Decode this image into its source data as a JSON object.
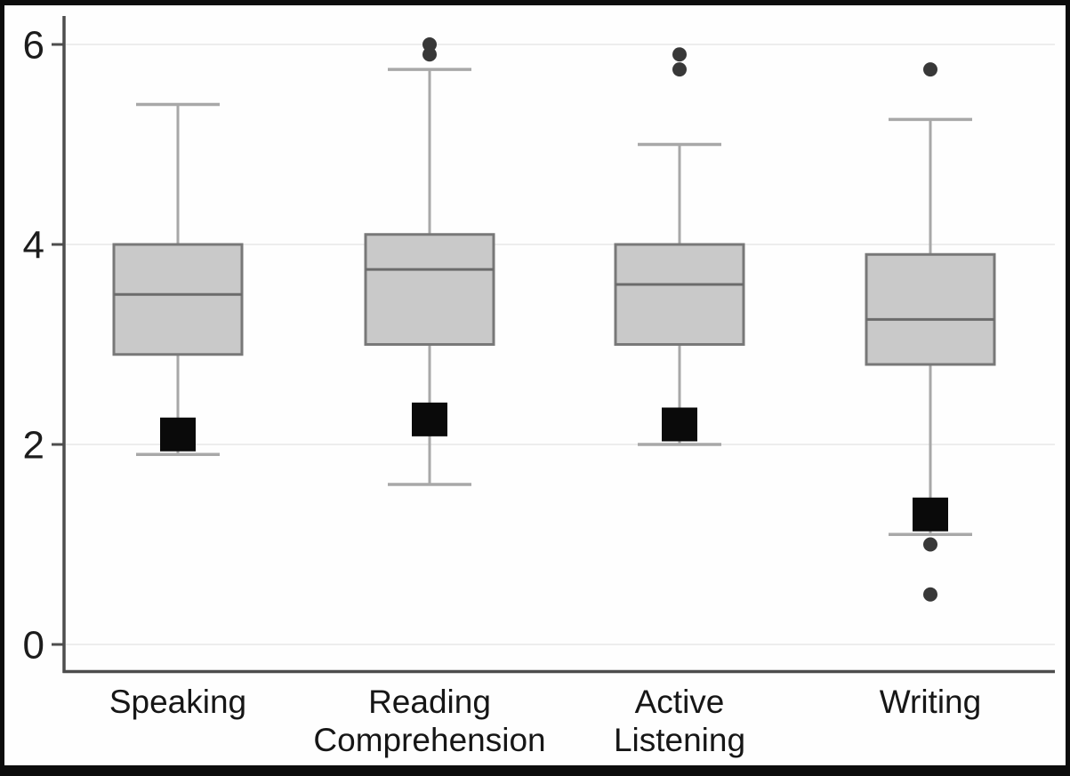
{
  "figure": {
    "background": "#fefefe",
    "border_color": "#0d0d0d"
  },
  "chart_data": {
    "type": "boxplot",
    "title": "",
    "xlabel": "",
    "ylabel": "",
    "categories": [
      "Speaking",
      "Reading\nComprehension",
      "Active\nListening",
      "Writing"
    ],
    "y_ticks": [
      6,
      4,
      2,
      0
    ],
    "y_tick_labels": [
      "6",
      "4",
      "2",
      "0"
    ],
    "ylim": [
      -0.35,
      6.25
    ],
    "grid": "horizontal-light",
    "legend": null,
    "series": [
      {
        "name": "Speaking",
        "whisker_low": 1.9,
        "q1": 2.9,
        "median": 3.5,
        "q3": 4.0,
        "whisker_high": 5.4,
        "mean_marker": 2.1,
        "outliers": []
      },
      {
        "name": "Reading Comprehension",
        "whisker_low": 1.6,
        "q1": 3.0,
        "median": 3.75,
        "q3": 4.1,
        "whisker_high": 5.75,
        "mean_marker": 2.25,
        "outliers": [
          5.9,
          6.0
        ]
      },
      {
        "name": "Active Listening",
        "whisker_low": 2.0,
        "q1": 3.0,
        "median": 3.6,
        "q3": 4.0,
        "whisker_high": 5.0,
        "mean_marker": 2.2,
        "outliers": [
          5.75,
          5.9
        ]
      },
      {
        "name": "Writing",
        "whisker_low": 1.1,
        "q1": 2.8,
        "median": 3.25,
        "q3": 3.9,
        "whisker_high": 5.25,
        "mean_marker": 1.3,
        "outliers": [
          5.75,
          1.0,
          0.5
        ]
      }
    ],
    "colors": {
      "box_fill": "#c9c9c9",
      "box_stroke": "#787878",
      "median_stroke": "#6b6b6b",
      "whisker": "#a8a8a8",
      "mean_marker": "#0a0a0a",
      "outlier": "#383838",
      "gridline": "#ededed",
      "axis": "#4d4d4d",
      "tick_label": "#1c1c1c",
      "category_label": "#161616"
    }
  }
}
